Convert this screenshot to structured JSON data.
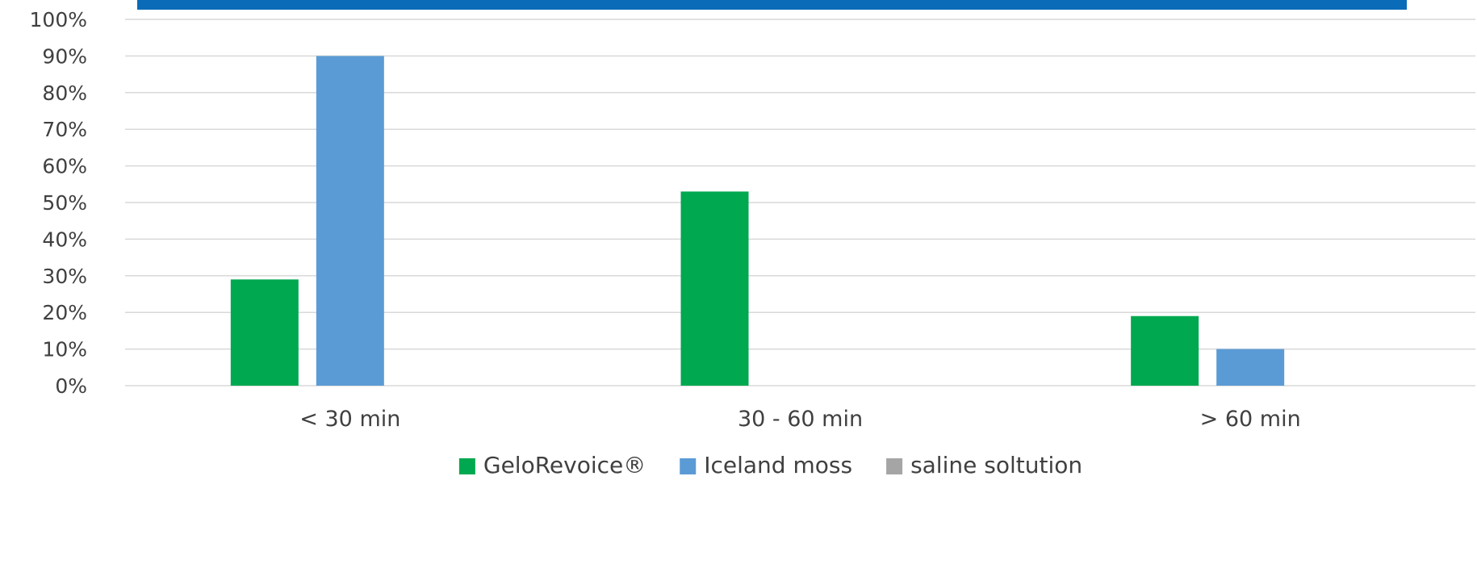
{
  "colors": {
    "header_band": "#0a6bb8",
    "gridline": "#d9d9d9",
    "axis_text": "#404040"
  },
  "chart_data": {
    "type": "bar",
    "categories": [
      "< 30 min",
      "30 - 60 min",
      "> 60 min"
    ],
    "series": [
      {
        "name": "GeloRevoice®",
        "color": "#00a84f",
        "values": [
          29,
          53,
          19
        ]
      },
      {
        "name": "Iceland moss",
        "color": "#5b9bd5",
        "values": [
          90,
          0,
          10
        ]
      },
      {
        "name": "saline soltution",
        "color": "#a5a5a5",
        "values": [
          0,
          0,
          0
        ]
      }
    ],
    "y_ticks": [
      "0%",
      "10%",
      "20%",
      "30%",
      "40%",
      "50%",
      "60%",
      "70%",
      "80%",
      "90%",
      "100%"
    ],
    "ylim": [
      0,
      100
    ],
    "grid": true,
    "legend_position": "bottom"
  }
}
